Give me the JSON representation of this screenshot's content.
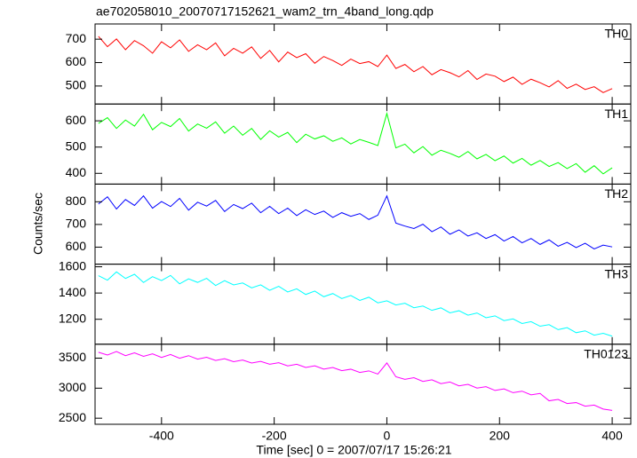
{
  "title": "ae702058010_20070717152621_wam2_trn_4band_long.qdp",
  "y_label": "Counts/sec",
  "chart_data": [
    {
      "type": "line",
      "ylim": [
        423,
        765
      ],
      "yticks": [
        500,
        600,
        700
      ],
      "x": [
        -512,
        -496,
        -480,
        -464,
        -448,
        -432,
        -416,
        -400,
        -384,
        -368,
        -352,
        -336,
        -320,
        -304,
        -288,
        -272,
        -256,
        -240,
        -224,
        -208,
        -192,
        -176,
        -160,
        -144,
        -128,
        -112,
        -96,
        -80,
        -64,
        -48,
        -32,
        -16,
        0,
        16,
        32,
        48,
        64,
        80,
        96,
        112,
        128,
        144,
        160,
        176,
        192,
        208,
        224,
        240,
        256,
        272,
        288,
        304,
        320,
        336,
        352,
        368,
        384,
        400
      ],
      "series": [
        {
          "name": "TH0",
          "color": "#ff0000",
          "values": [
            712,
            668,
            701,
            655,
            694,
            672,
            640,
            689,
            663,
            697,
            648,
            676,
            655,
            684,
            629,
            661,
            640,
            667,
            618,
            652,
            603,
            645,
            621,
            638,
            597,
            626,
            609,
            588,
            615,
            596,
            604,
            583,
            632,
            575,
            592,
            561,
            583,
            548,
            570,
            557,
            539,
            566,
            528,
            551,
            542,
            519,
            538,
            507,
            529,
            514,
            496,
            523,
            490,
            508,
            485,
            497,
            472,
            489
          ]
        }
      ]
    },
    {
      "type": "line",
      "ylim": [
        359,
        664
      ],
      "yticks": [
        400,
        500,
        600
      ],
      "x": [
        -512,
        -496,
        -480,
        -464,
        -448,
        -432,
        -416,
        -400,
        -384,
        -368,
        -352,
        -336,
        -320,
        -304,
        -288,
        -272,
        -256,
        -240,
        -224,
        -208,
        -192,
        -176,
        -160,
        -144,
        -128,
        -112,
        -96,
        -80,
        -64,
        -48,
        -32,
        -16,
        0,
        16,
        32,
        48,
        64,
        80,
        96,
        112,
        128,
        144,
        160,
        176,
        192,
        208,
        224,
        240,
        256,
        272,
        288,
        304,
        320,
        336,
        352,
        368,
        384,
        400
      ],
      "series": [
        {
          "name": "TH1",
          "color": "#00ff00",
          "values": [
            590,
            612,
            571,
            603,
            580,
            625,
            566,
            594,
            578,
            609,
            561,
            588,
            572,
            596,
            553,
            580,
            545,
            571,
            529,
            562,
            538,
            556,
            517,
            549,
            531,
            543,
            522,
            535,
            512,
            529,
            518,
            506,
            628,
            497,
            511,
            478,
            502,
            469,
            488,
            476,
            461,
            483,
            455,
            472,
            448,
            466,
            439,
            457,
            431,
            449,
            426,
            441,
            418,
            437,
            404,
            429,
            398,
            421
          ]
        }
      ]
    },
    {
      "type": "line",
      "ylim": [
        525,
        878
      ],
      "yticks": [
        600,
        700,
        800
      ],
      "x": [
        -512,
        -496,
        -480,
        -464,
        -448,
        -432,
        -416,
        -400,
        -384,
        -368,
        -352,
        -336,
        -320,
        -304,
        -288,
        -272,
        -256,
        -240,
        -224,
        -208,
        -192,
        -176,
        -160,
        -144,
        -128,
        -112,
        -96,
        -80,
        -64,
        -48,
        -32,
        -16,
        0,
        16,
        32,
        48,
        64,
        80,
        96,
        112,
        128,
        144,
        160,
        176,
        192,
        208,
        224,
        240,
        256,
        272,
        288,
        304,
        320,
        336,
        352,
        368,
        384,
        400
      ],
      "series": [
        {
          "name": "TH2",
          "color": "#0000ff",
          "values": [
            790,
            822,
            768,
            810,
            784,
            826,
            772,
            801,
            779,
            815,
            763,
            798,
            781,
            806,
            757,
            788,
            770,
            794,
            752,
            780,
            748,
            772,
            739,
            765,
            744,
            759,
            731,
            752,
            736,
            748,
            722,
            741,
            826,
            706,
            693,
            682,
            701,
            668,
            689,
            657,
            676,
            649,
            663,
            638,
            655,
            627,
            647,
            619,
            638,
            612,
            632,
            604,
            621,
            598,
            617,
            592,
            609,
            601
          ]
        }
      ]
    },
    {
      "type": "line",
      "ylim": [
        1010,
        1620
      ],
      "yticks": [
        1200,
        1400,
        1600
      ],
      "x": [
        -512,
        -496,
        -480,
        -464,
        -448,
        -432,
        -416,
        -400,
        -384,
        -368,
        -352,
        -336,
        -320,
        -304,
        -288,
        -272,
        -256,
        -240,
        -224,
        -208,
        -192,
        -176,
        -160,
        -144,
        -128,
        -112,
        -96,
        -80,
        -64,
        -48,
        -32,
        -16,
        0,
        16,
        32,
        48,
        64,
        80,
        96,
        112,
        128,
        144,
        160,
        176,
        192,
        208,
        224,
        240,
        256,
        272,
        288,
        304,
        320,
        336,
        352,
        368,
        384,
        400
      ],
      "series": [
        {
          "name": "TH3",
          "color": "#00ffff",
          "values": [
            1532,
            1498,
            1561,
            1511,
            1543,
            1480,
            1525,
            1495,
            1534,
            1470,
            1508,
            1481,
            1512,
            1457,
            1494,
            1462,
            1477,
            1439,
            1462,
            1421,
            1451,
            1408,
            1432,
            1389,
            1415,
            1372,
            1396,
            1358,
            1381,
            1344,
            1368,
            1325,
            1341,
            1309,
            1322,
            1288,
            1301,
            1268,
            1287,
            1249,
            1265,
            1231,
            1248,
            1212,
            1226,
            1190,
            1203,
            1168,
            1182,
            1147,
            1159,
            1121,
            1136,
            1098,
            1112,
            1079,
            1093,
            1071
          ]
        }
      ]
    },
    {
      "type": "line",
      "ylim": [
        2399,
        3732
      ],
      "yticks": [
        2500,
        3000,
        3500
      ],
      "x_label": "Time [sec] 0 = 2007/07/17 15:26:21",
      "xlim": [
        -518,
        433
      ],
      "xticks": [
        -400,
        -200,
        0,
        200,
        400
      ],
      "x": [
        -512,
        -496,
        -480,
        -464,
        -448,
        -432,
        -416,
        -400,
        -384,
        -368,
        -352,
        -336,
        -320,
        -304,
        -288,
        -272,
        -256,
        -240,
        -224,
        -208,
        -192,
        -176,
        -160,
        -144,
        -128,
        -112,
        -96,
        -80,
        -64,
        -48,
        -32,
        -16,
        0,
        16,
        32,
        48,
        64,
        80,
        96,
        112,
        128,
        144,
        160,
        176,
        192,
        208,
        224,
        240,
        256,
        272,
        288,
        304,
        320,
        336,
        352,
        368,
        384,
        400
      ],
      "series": [
        {
          "name": "TH0123",
          "color": "#ff00ff",
          "values": [
            3598,
            3552,
            3610,
            3541,
            3589,
            3530,
            3571,
            3512,
            3560,
            3498,
            3541,
            3483,
            3515,
            3462,
            3490,
            3441,
            3468,
            3419,
            3446,
            3398,
            3424,
            3371,
            3398,
            3345,
            3372,
            3318,
            3345,
            3291,
            3316,
            3262,
            3288,
            3235,
            3420,
            3190,
            3148,
            3175,
            3112,
            3140,
            3076,
            3102,
            3038,
            3064,
            3001,
            3025,
            2962,
            2988,
            2925,
            2950,
            2889,
            2912,
            2790,
            2812,
            2745,
            2760,
            2700,
            2718,
            2652,
            2630
          ]
        }
      ]
    }
  ]
}
